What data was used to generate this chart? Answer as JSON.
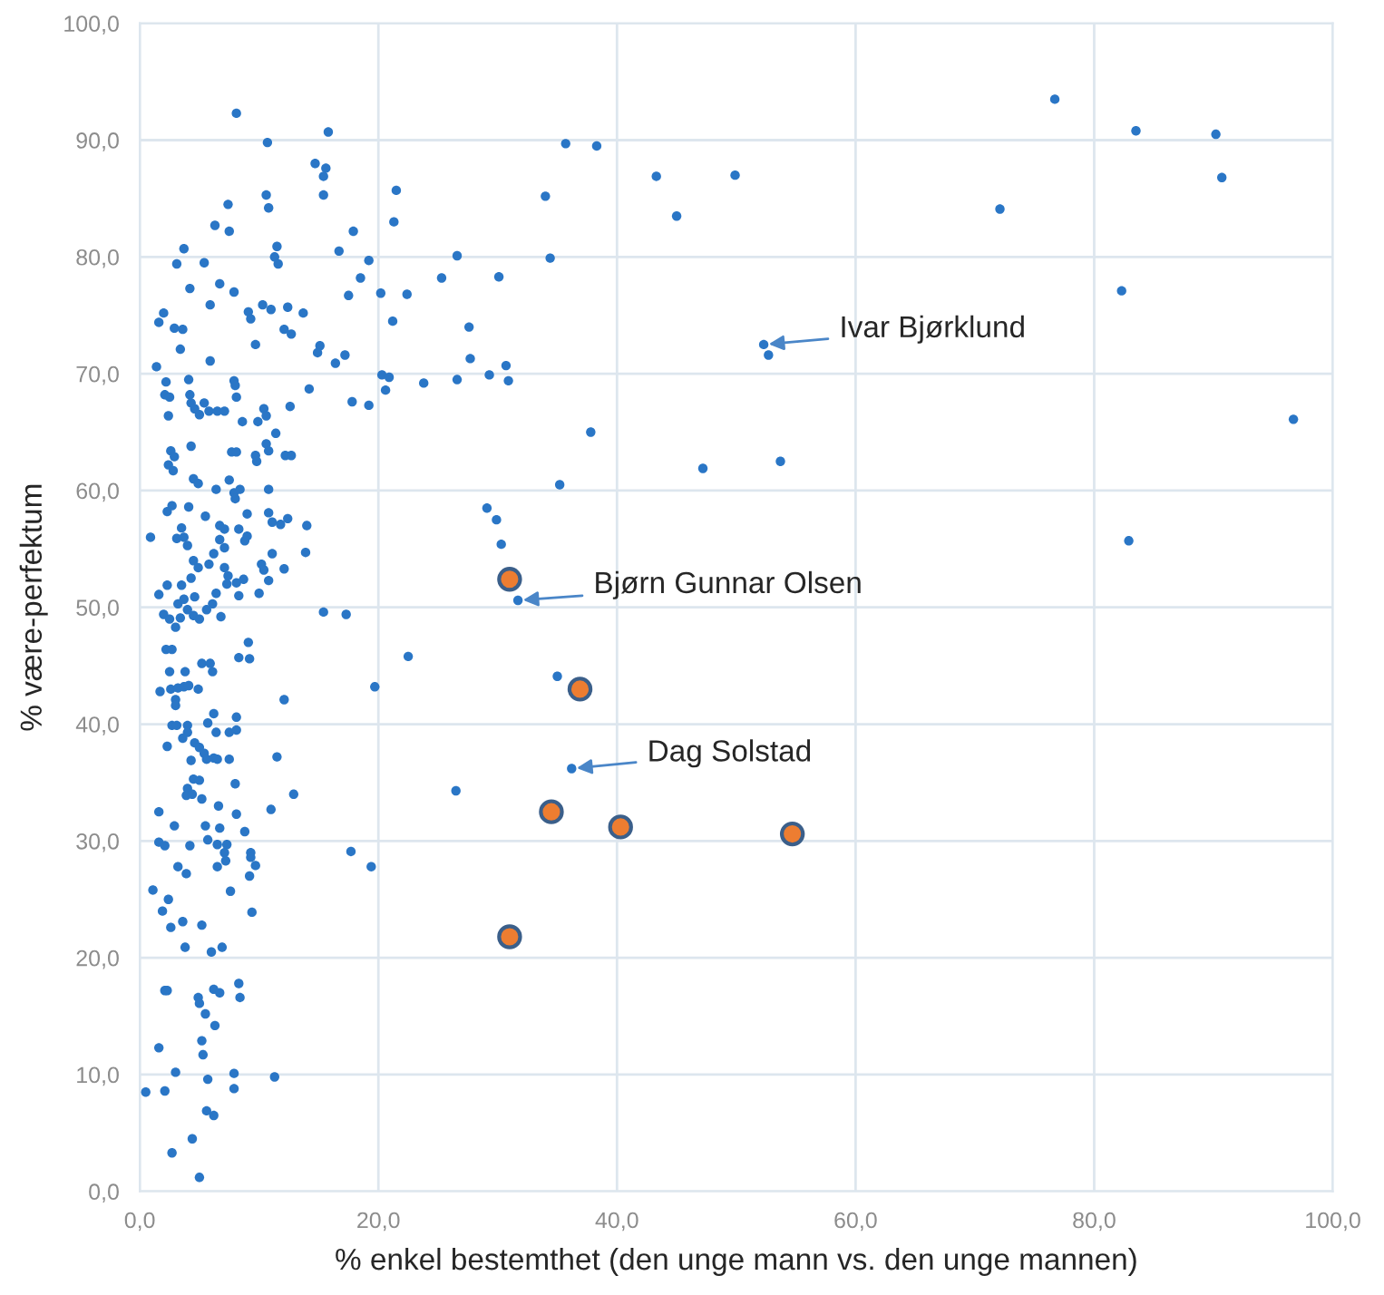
{
  "chart_data": {
    "type": "scatter",
    "xlabel": "% enkel bestemthet (den unge mann vs. den unge mannen)",
    "ylabel": "% være-perfektum",
    "xlim": [
      0,
      100
    ],
    "ylim": [
      0,
      100
    ],
    "xticks": [
      {
        "value": 0,
        "label": "0,0"
      },
      {
        "value": 20,
        "label": "20,0"
      },
      {
        "value": 40,
        "label": "40,0"
      },
      {
        "value": 60,
        "label": "60,0"
      },
      {
        "value": 80,
        "label": "80,0"
      },
      {
        "value": 100,
        "label": "100,0"
      }
    ],
    "yticks": [
      {
        "value": 0,
        "label": "0,0"
      },
      {
        "value": 10,
        "label": "10,0"
      },
      {
        "value": 20,
        "label": "20,0"
      },
      {
        "value": 30,
        "label": "30,0"
      },
      {
        "value": 40,
        "label": "40,0"
      },
      {
        "value": 50,
        "label": "50,0"
      },
      {
        "value": 60,
        "label": "60,0"
      },
      {
        "value": 70,
        "label": "70,0"
      },
      {
        "value": 80,
        "label": "80,0"
      },
      {
        "value": 90,
        "label": "90,0"
      },
      {
        "value": 100,
        "label": "100,0"
      }
    ],
    "grid": true,
    "marker": "circle",
    "annotations": [
      {
        "text": "Ivar Bjørklund",
        "x": 52.3,
        "y": 72.5
      },
      {
        "text": "Bjørn Gunnar Olsen",
        "x": 31.7,
        "y": 50.6
      },
      {
        "text": "Dag Solstad",
        "x": 36.2,
        "y": 36.2
      }
    ],
    "series": [
      {
        "color": "#2a76c6",
        "x": [
          8.1,
          10.7,
          15.8,
          14.7,
          15.6,
          15.4,
          10.6,
          10.8,
          15.4,
          21.5,
          21.3,
          7.4,
          6.3,
          7.5,
          17.9,
          3.7,
          3.1,
          5.4,
          11.5,
          11.3,
          11.6,
          16.7,
          19.2,
          18.5,
          4.2,
          6.7,
          7.9,
          17.5,
          20.2,
          22.4,
          2.0,
          1.6,
          5.9,
          2.9,
          3.6,
          9.1,
          9.3,
          10.3,
          11.0,
          12.4,
          13.7,
          3.4,
          9.7,
          12.1,
          12.7,
          21.2,
          15.1,
          14.9,
          17.2,
          16.4,
          5.9,
          1.4,
          2.2,
          4.1,
          7.9,
          8.0,
          20.3,
          20.9,
          20.6,
          23.8,
          14.2,
          2.1,
          2.5,
          2.4,
          4.2,
          4.3,
          5.4,
          4.6,
          5.0,
          5.8,
          6.5,
          7.1,
          8.1,
          8.6,
          9.9,
          10.4,
          10.6,
          12.6,
          17.8,
          19.2,
          11.4,
          10.6,
          10.8,
          2.6,
          2.9,
          4.3,
          2.4,
          2.8,
          7.7,
          8.1,
          9.7,
          9.8,
          12.2,
          12.7,
          4.5,
          4.9,
          6.4,
          7.5,
          7.9,
          8.4,
          8.0,
          10.8,
          2.7,
          2.3,
          4.1,
          5.5,
          6.7,
          7.1,
          9.0,
          10.8,
          11.1,
          11.8,
          12.4,
          14.0,
          0.9,
          3.5,
          3.7,
          3.1,
          4.0,
          8.3,
          9.0,
          8.8,
          6.7,
          7.1,
          13.9,
          11.1,
          12.1,
          10.2,
          10.4,
          6.2,
          5.8,
          4.5,
          4.9,
          4.3,
          7.1,
          7.4,
          7.3,
          8.1,
          8.7,
          8.3,
          10.0,
          10.8,
          2.3,
          1.6,
          3.5,
          3.2,
          3.7,
          4.6,
          4.0,
          6.4,
          6.1,
          5.6,
          15.4,
          17.3,
          2.0,
          2.5,
          3.4,
          4.5,
          5.0,
          3.0,
          6.8,
          9.1,
          2.2,
          2.7,
          22.5,
          5.2,
          5.9,
          6.1,
          2.5,
          3.8,
          8.3,
          9.2,
          1.7,
          2.6,
          3.2,
          3.7,
          4.1,
          4.9,
          3.0,
          3.0,
          19.7,
          12.1,
          2.7,
          3.1,
          4.0,
          4.0,
          5.7,
          6.2,
          6.4,
          8.1,
          7.5,
          8.1,
          2.3,
          3.6,
          4.6,
          5.0,
          5.4,
          5.6,
          4.3,
          6.2,
          6.5,
          7.5,
          11.5,
          4.5,
          5.0,
          4.0,
          3.9,
          4.4,
          5.2,
          8.0,
          12.9,
          6.6,
          1.6,
          11.0,
          8.1,
          2.9,
          5.5,
          6.7,
          8.8,
          5.7,
          4.2,
          1.6,
          2.1,
          6.5,
          7.3,
          7.1,
          7.2,
          6.5,
          9.3,
          9.3,
          9.7,
          9.2,
          3.2,
          3.9,
          17.7,
          19.4,
          1.1,
          2.4,
          7.6,
          1.9,
          2.6,
          3.6,
          5.2,
          9.4,
          3.8,
          6.0,
          6.9,
          2.1,
          2.3,
          4.9,
          5.0,
          6.2,
          6.7,
          8.3,
          8.4,
          5.5,
          6.3,
          5.2,
          5.3,
          1.6,
          3.0,
          5.7,
          7.9,
          11.3,
          0.5,
          2.1,
          7.9,
          5.6,
          6.2,
          4.4,
          2.7,
          5.0,
          35.7,
          38.3,
          43.3,
          49.9,
          34.0,
          45.0,
          26.6,
          34.4,
          25.3,
          30.1,
          27.6,
          27.7,
          52.3,
          52.7,
          26.6,
          29.3,
          30.7,
          30.9,
          37.8,
          47.2,
          53.7,
          35.2,
          29.1,
          29.9,
          30.3,
          31.7,
          35.0,
          36.2,
          26.5,
          76.7,
          83.5,
          90.2,
          90.7,
          72.1,
          82.3,
          96.7,
          82.9
        ],
        "values": [
          92.3,
          89.8,
          90.7,
          88.0,
          87.6,
          86.9,
          85.3,
          84.2,
          85.3,
          85.7,
          83.0,
          84.5,
          82.7,
          82.2,
          82.2,
          80.7,
          79.4,
          79.5,
          80.9,
          80.0,
          79.4,
          80.5,
          79.7,
          78.2,
          77.3,
          77.7,
          77.0,
          76.7,
          76.9,
          76.8,
          75.2,
          74.4,
          75.9,
          73.9,
          73.8,
          75.3,
          74.7,
          75.9,
          75.5,
          75.7,
          75.2,
          72.1,
          72.5,
          73.8,
          73.4,
          74.5,
          72.4,
          71.8,
          71.6,
          70.9,
          71.1,
          70.6,
          69.3,
          69.5,
          69.4,
          69.0,
          69.9,
          69.7,
          68.6,
          69.2,
          68.7,
          68.2,
          68.0,
          66.4,
          68.2,
          67.5,
          67.5,
          67.0,
          66.5,
          66.8,
          66.8,
          66.8,
          68.0,
          65.9,
          65.9,
          67.0,
          66.4,
          67.2,
          67.6,
          67.3,
          64.9,
          64.0,
          63.4,
          63.4,
          62.9,
          63.8,
          62.2,
          61.7,
          63.3,
          63.3,
          63.0,
          62.5,
          63.0,
          63.0,
          61.0,
          60.6,
          60.1,
          60.9,
          59.8,
          60.1,
          59.3,
          60.1,
          58.7,
          58.2,
          58.6,
          57.8,
          57.0,
          56.7,
          58.0,
          58.1,
          57.3,
          57.1,
          57.6,
          57.0,
          56.0,
          56.8,
          56.0,
          55.9,
          55.3,
          56.7,
          56.1,
          55.7,
          55.8,
          55.1,
          54.7,
          54.6,
          53.3,
          53.7,
          53.2,
          54.6,
          53.7,
          54.0,
          53.4,
          52.5,
          53.4,
          52.7,
          52.0,
          52.1,
          52.4,
          51.0,
          51.2,
          52.3,
          51.9,
          51.1,
          51.9,
          50.3,
          50.7,
          50.9,
          49.8,
          51.2,
          50.3,
          49.8,
          49.6,
          49.4,
          49.4,
          49.0,
          49.1,
          49.3,
          49.0,
          48.3,
          49.2,
          47.0,
          46.4,
          46.4,
          45.8,
          45.2,
          45.2,
          44.5,
          44.5,
          44.5,
          45.7,
          45.6,
          42.8,
          43.0,
          43.1,
          43.2,
          43.3,
          43.0,
          42.1,
          41.6,
          43.2,
          42.1,
          39.9,
          39.9,
          39.9,
          39.3,
          40.1,
          40.9,
          39.3,
          40.6,
          39.3,
          39.5,
          38.1,
          38.8,
          38.4,
          38.0,
          37.5,
          37.0,
          36.9,
          37.1,
          37.0,
          37.0,
          37.2,
          35.3,
          35.2,
          34.5,
          33.9,
          34.0,
          33.6,
          34.9,
          34.0,
          33.0,
          32.5,
          32.7,
          32.3,
          31.3,
          31.3,
          31.1,
          30.8,
          30.1,
          29.6,
          29.9,
          29.6,
          29.7,
          29.7,
          29.0,
          28.3,
          27.8,
          29.0,
          28.6,
          27.9,
          27.0,
          27.8,
          27.2,
          29.1,
          27.8,
          25.8,
          25.0,
          25.7,
          24.0,
          22.6,
          23.1,
          22.8,
          23.9,
          20.9,
          20.5,
          20.9,
          17.2,
          17.2,
          16.6,
          16.1,
          17.3,
          17.0,
          17.8,
          16.6,
          15.2,
          14.2,
          12.9,
          11.7,
          12.3,
          10.2,
          9.6,
          10.1,
          9.8,
          8.5,
          8.6,
          8.8,
          6.9,
          6.5,
          4.5,
          3.3,
          1.2,
          89.7,
          89.5,
          86.9,
          87.0,
          85.2,
          83.5,
          80.1,
          79.9,
          78.2,
          78.3,
          74.0,
          71.3,
          72.5,
          71.6,
          69.5,
          69.9,
          70.7,
          69.4,
          65.0,
          61.9,
          62.5,
          60.5,
          58.5,
          57.5,
          55.4,
          50.6,
          44.1,
          36.2,
          34.3,
          93.5,
          90.8,
          90.5,
          86.8,
          84.1,
          77.1,
          66.1,
          55.7
        ]
      },
      {
        "color": "#ed7d31",
        "x": [
          31.0,
          36.9,
          34.5,
          40.3,
          54.7,
          31.0
        ],
        "values": [
          52.4,
          43.0,
          32.5,
          31.2,
          30.6,
          21.8
        ]
      }
    ]
  }
}
